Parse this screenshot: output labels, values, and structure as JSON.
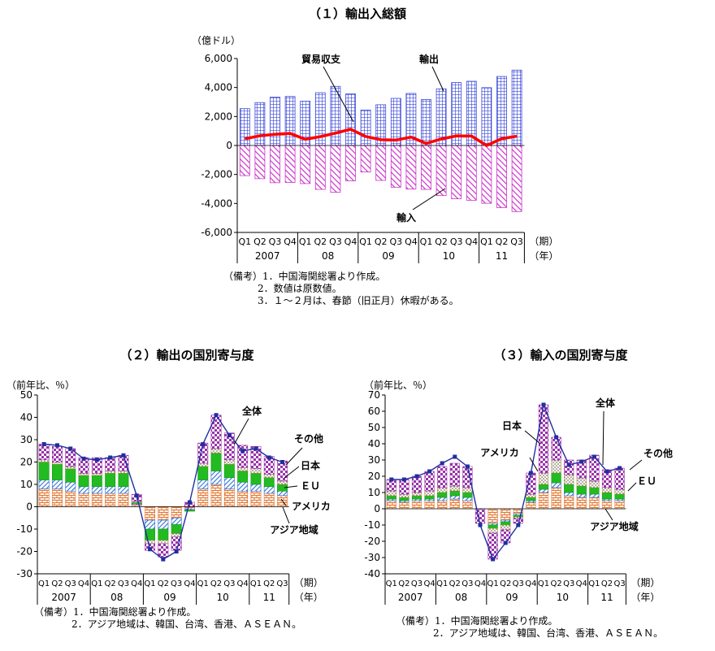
{
  "notes": {
    "chart1": [
      "（備考）1．中国海関総署より作成。",
      "2．数値は原数値。",
      "3．１～２月は、春節（旧正月）休暇がある。"
    ],
    "chart2": [
      "（備考）1．中国海関総署より作成。",
      "2．アジア地域は、韓国、台湾、香港、ＡＳＥＡＮ。"
    ],
    "chart3": [
      "（備考）1．中国海関総署より作成。",
      "2．アジア地域は、韓国、台湾、香港、ＡＳＥＡＮ。"
    ]
  },
  "colors": {
    "export": "#3c4ad8",
    "import": "#cc33cc",
    "balance": "#ff0000",
    "asia": "#e07a3a",
    "america": "#2e6fd6",
    "eu": "#22bb22",
    "japan": "#d4a020",
    "other": "#9933aa",
    "total": "#1f2f9f"
  },
  "chart_data": [
    {
      "type": "bar",
      "title": "（１）輸出入総額",
      "unit_label": "（億ドル）",
      "ylim": [
        -6000,
        6000
      ],
      "yticks": [
        6000,
        4000,
        2000,
        0,
        -2000,
        -4000,
        -6000
      ],
      "ytick_labels": [
        "6,000",
        "4,000",
        "2,000",
        "0",
        "-2,000",
        "-4,000",
        "-6,000"
      ],
      "quarters": [
        "Q1",
        "Q2",
        "Q3",
        "Q4",
        "Q1",
        "Q2",
        "Q3",
        "Q4",
        "Q1",
        "Q2",
        "Q3",
        "Q4",
        "Q1",
        "Q2",
        "Q3",
        "Q4",
        "Q1",
        "Q2",
        "Q3"
      ],
      "years": [
        "2007",
        "08",
        "09",
        "10",
        "11"
      ],
      "period_label": "（期）",
      "year_label": "（年）",
      "series": [
        {
          "name": "輸出",
          "values": [
            2540,
            2960,
            3340,
            3380,
            3060,
            3640,
            4080,
            3560,
            2450,
            2810,
            3250,
            3590,
            3170,
            3910,
            4340,
            4430,
            3990,
            4760,
            5200
          ]
        },
        {
          "name": "輸入",
          "values": [
            -2080,
            -2290,
            -2570,
            -2550,
            -2630,
            -3030,
            -3230,
            -2440,
            -1830,
            -2410,
            -2880,
            -3010,
            -3030,
            -3460,
            -3680,
            -3780,
            -3990,
            -4290,
            -4560
          ]
        },
        {
          "name": "貿易収支",
          "values": [
            460,
            670,
            770,
            830,
            430,
            610,
            850,
            1120,
            620,
            400,
            370,
            580,
            140,
            450,
            660,
            650,
            0,
            470,
            640
          ]
        }
      ],
      "annotations": [
        "貿易収支",
        "輸出",
        "輸入"
      ]
    },
    {
      "type": "bar",
      "title": "（２）輸出の国別寄与度",
      "unit_label": "（前年比、％）",
      "ylim": [
        -30,
        50
      ],
      "yticks": [
        50,
        40,
        30,
        20,
        10,
        0,
        -10,
        -20,
        -30
      ],
      "ytick_labels": [
        "50",
        "40",
        "30",
        "20",
        "10",
        "0",
        "-10",
        "-20",
        "-30"
      ],
      "quarters": [
        "Q1",
        "Q2",
        "Q3",
        "Q4",
        "Q1",
        "Q2",
        "Q3",
        "Q4",
        "Q1",
        "Q2",
        "Q3",
        "Q4",
        "Q1",
        "Q2",
        "Q3",
        "Q4",
        "Q1",
        "Q2",
        "Q3"
      ],
      "years": [
        "2007",
        "08",
        "09",
        "10",
        "11"
      ],
      "period_label": "（期）",
      "year_label": "（年）",
      "series": [
        {
          "name": "アジア地域",
          "values": [
            8,
            8,
            7,
            6,
            6,
            6,
            6,
            1,
            -6,
            -6,
            -5,
            -1,
            8,
            10,
            8,
            7,
            7,
            6,
            5
          ]
        },
        {
          "name": "アメリカ",
          "values": [
            4,
            4,
            4,
            3,
            3,
            3,
            3,
            0.5,
            -4,
            -4,
            -3,
            -0.5,
            4,
            6,
            5,
            4,
            3,
            3,
            2
          ]
        },
        {
          "name": "ＥＵ",
          "values": [
            8,
            7,
            6,
            5,
            5,
            6,
            6,
            0.5,
            -5,
            -5,
            -4,
            -0.5,
            6,
            8,
            6,
            5,
            5,
            4,
            3
          ]
        },
        {
          "name": "日本",
          "values": [
            1,
            1,
            1,
            1,
            1,
            1,
            1,
            0.5,
            -1.5,
            -1.5,
            -1.5,
            0,
            1.5,
            2,
            2,
            1.5,
            2,
            1.5,
            1.5
          ]
        },
        {
          "name": "その他",
          "values": [
            7,
            7,
            8,
            7,
            7,
            6,
            7,
            3,
            -3,
            -6,
            -6,
            2,
            9,
            15,
            12,
            10,
            10,
            8,
            9
          ]
        },
        {
          "name": "全体",
          "values": [
            28,
            27.5,
            26,
            21.5,
            21,
            22,
            23,
            5,
            -19,
            -23.5,
            -20,
            2,
            28,
            41,
            32,
            25,
            26,
            22,
            20
          ]
        }
      ],
      "annotations": [
        "全体",
        "その他",
        "日本",
        "ＥＵ",
        "アメリカ",
        "アジア地域"
      ]
    },
    {
      "type": "bar",
      "title": "（３）輸入の国別寄与度",
      "unit_label": "（前年比、％）",
      "ylim": [
        -40,
        70
      ],
      "yticks": [
        70,
        60,
        50,
        40,
        30,
        20,
        10,
        0,
        -10,
        -20,
        -30,
        -40
      ],
      "ytick_labels": [
        "70",
        "60",
        "50",
        "40",
        "30",
        "20",
        "10",
        "0",
        "-10",
        "-20",
        "-30",
        "-40"
      ],
      "quarters": [
        "Q1",
        "Q2",
        "Q3",
        "Q4",
        "Q1",
        "Q2",
        "Q3",
        "Q4",
        "Q1",
        "Q2",
        "Q3",
        "Q4",
        "Q1",
        "Q2",
        "Q3",
        "Q4",
        "Q1",
        "Q2",
        "Q3"
      ],
      "years": [
        "2007",
        "08",
        "09",
        "10",
        "11"
      ],
      "period_label": "（期）",
      "year_label": "（年）",
      "series": [
        {
          "name": "アジア地域",
          "values": [
            5,
            4,
            5,
            5,
            5,
            6,
            5,
            0,
            -9,
            -7,
            -3,
            4,
            10,
            13,
            8,
            7,
            7,
            5,
            5
          ]
        },
        {
          "name": "アメリカ",
          "values": [
            1,
            1,
            1,
            1,
            2,
            2,
            2,
            0,
            -1,
            -1,
            -1,
            1,
            2,
            3,
            2,
            2,
            2,
            1,
            1
          ]
        },
        {
          "name": "ＥＵ",
          "values": [
            2,
            2,
            2,
            2,
            3,
            3,
            3,
            0,
            -2,
            -2,
            -1,
            2,
            3,
            6,
            5,
            5,
            4,
            4,
            3
          ]
        },
        {
          "name": "日本",
          "values": [
            3,
            2,
            2,
            3,
            3,
            3,
            3,
            0,
            -3,
            -3,
            -1,
            2,
            7,
            8,
            6,
            5,
            4,
            3,
            3
          ]
        },
        {
          "name": "その他",
          "values": [
            7,
            9,
            10,
            12,
            13,
            14,
            13,
            -9,
            -16,
            -8,
            -3,
            13,
            42,
            14,
            9,
            11,
            16,
            11,
            13
          ]
        },
        {
          "name": "全体",
          "values": [
            18,
            18,
            20,
            23,
            28,
            32,
            26,
            -10,
            -31,
            -21,
            -10,
            22,
            64,
            44,
            27,
            29,
            32,
            23,
            25
          ]
        }
      ],
      "annotations": [
        "全体",
        "日本",
        "アメリカ",
        "その他",
        "ＥＵ",
        "アジア地域"
      ]
    }
  ]
}
